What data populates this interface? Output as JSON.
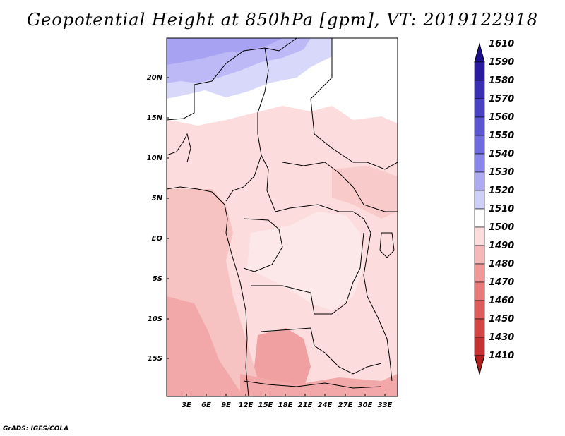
{
  "title": "Geopotential Height at 850hPa [gpm], VT: 2019122918",
  "credit": "GrADS: IGES/COLA",
  "map": {
    "lat_labels": [
      "20N",
      "15N",
      "10N",
      "5N",
      "EQ",
      "5S",
      "10S",
      "15S"
    ],
    "lon_labels": [
      "3E",
      "6E",
      "9E",
      "12E",
      "15E",
      "18E",
      "21E",
      "24E",
      "27E",
      "30E",
      "33E"
    ]
  },
  "colorbar": {
    "levels": [
      1610,
      1590,
      1580,
      1570,
      1560,
      1550,
      1540,
      1530,
      1520,
      1510,
      1500,
      1490,
      1480,
      1470,
      1460,
      1450,
      1430,
      1410
    ],
    "labels": [
      "1610",
      "1590",
      "1580",
      "1570",
      "1560",
      "1550",
      "1540",
      "1530",
      "1520",
      "1510",
      "1500",
      "1490",
      "1480",
      "1470",
      "1460",
      "1450",
      "1430",
      "1410"
    ],
    "colors": [
      "#1e0f8c",
      "#2a1aa0",
      "#3a2fb4",
      "#4a42c4",
      "#5a55d2",
      "#6e6ae0",
      "#8a86ec",
      "#aeabf4",
      "#cfd0f8",
      "#ffffff",
      "#fcdcdc",
      "#f7b8b8",
      "#f29898",
      "#e97a7a",
      "#df5c5c",
      "#d44444",
      "#c53030",
      "#b01e1e"
    ]
  }
}
